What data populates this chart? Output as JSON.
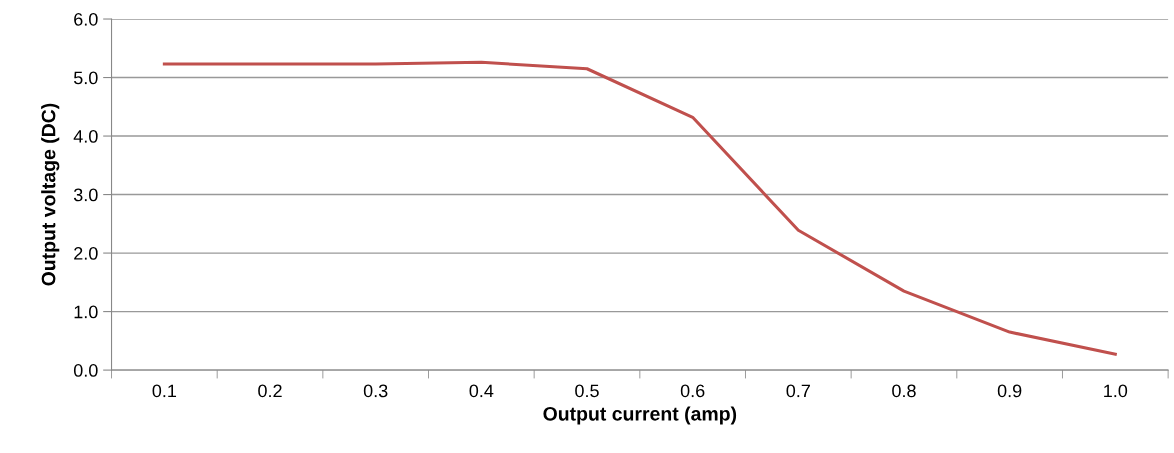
{
  "chart_data": {
    "type": "line",
    "xlabel": "Output current (amp)",
    "ylabel": "Output voltage (DC)",
    "categories": [
      "0.1",
      "0.2",
      "0.3",
      "0.4",
      "0.5",
      "0.6",
      "0.7",
      "0.8",
      "0.9",
      "1.0"
    ],
    "series": [
      {
        "color": "#c0504d",
        "values": [
          5.23,
          5.23,
          5.23,
          5.26,
          5.15,
          4.32,
          2.39,
          1.35,
          0.65,
          0.27
        ]
      }
    ],
    "ylim": [
      0,
      6
    ],
    "yticks": [
      {
        "value": 0,
        "label": "0.0"
      },
      {
        "value": 1,
        "label": "1.0"
      },
      {
        "value": 2,
        "label": "2.0"
      },
      {
        "value": 3,
        "label": "3.0"
      },
      {
        "value": 4,
        "label": "4.0"
      },
      {
        "value": 5,
        "label": "5.0"
      },
      {
        "value": 6,
        "label": "6.0"
      }
    ],
    "grid": "y",
    "line_style": "solid",
    "marker": "none"
  }
}
